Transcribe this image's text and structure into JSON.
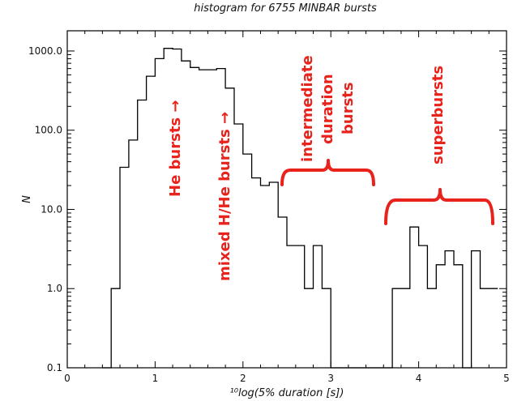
{
  "chart_data": {
    "type": "histogram",
    "title": "histogram for  6755 MINBAR bursts",
    "xlabel": "¹⁰log(5% duration [s])",
    "ylabel": "N",
    "xlim": [
      0,
      5
    ],
    "ylim": [
      0.1,
      1800
    ],
    "yscale": "log",
    "x_ticks": [
      "0",
      "1",
      "2",
      "3",
      "4",
      "5"
    ],
    "y_ticks": [
      {
        "value": 0.1,
        "label": "0.1"
      },
      {
        "value": 1,
        "label": "1.0"
      },
      {
        "value": 10,
        "label": "10.0"
      },
      {
        "value": 100,
        "label": "100.0"
      },
      {
        "value": 1000,
        "label": "1000.0"
      }
    ],
    "bin_width": 0.1,
    "bin_edges_start": 0.4,
    "counts": [
      0.1,
      1,
      34,
      75,
      240,
      480,
      800,
      1080,
      1060,
      750,
      620,
      580,
      580,
      600,
      340,
      120,
      50,
      25,
      20,
      22,
      8,
      3.5,
      3.5,
      1,
      3.5,
      1,
      0.1,
      0.1,
      0.1,
      0.1,
      0.1,
      0.1,
      0.1,
      1,
      1,
      6,
      3.5,
      1,
      2,
      3,
      2,
      0.1,
      3,
      1,
      1
    ],
    "color": "#000000",
    "annotations": [
      {
        "text": "He bursts →",
        "color": "#e8231c"
      },
      {
        "text": "mixed H/He bursts →",
        "color": "#e8231c"
      },
      {
        "lines": [
          "intermediate",
          "duration",
          "bursts"
        ],
        "color": "#e8231c"
      },
      {
        "text": "superbursts",
        "color": "#e8231c"
      }
    ]
  }
}
